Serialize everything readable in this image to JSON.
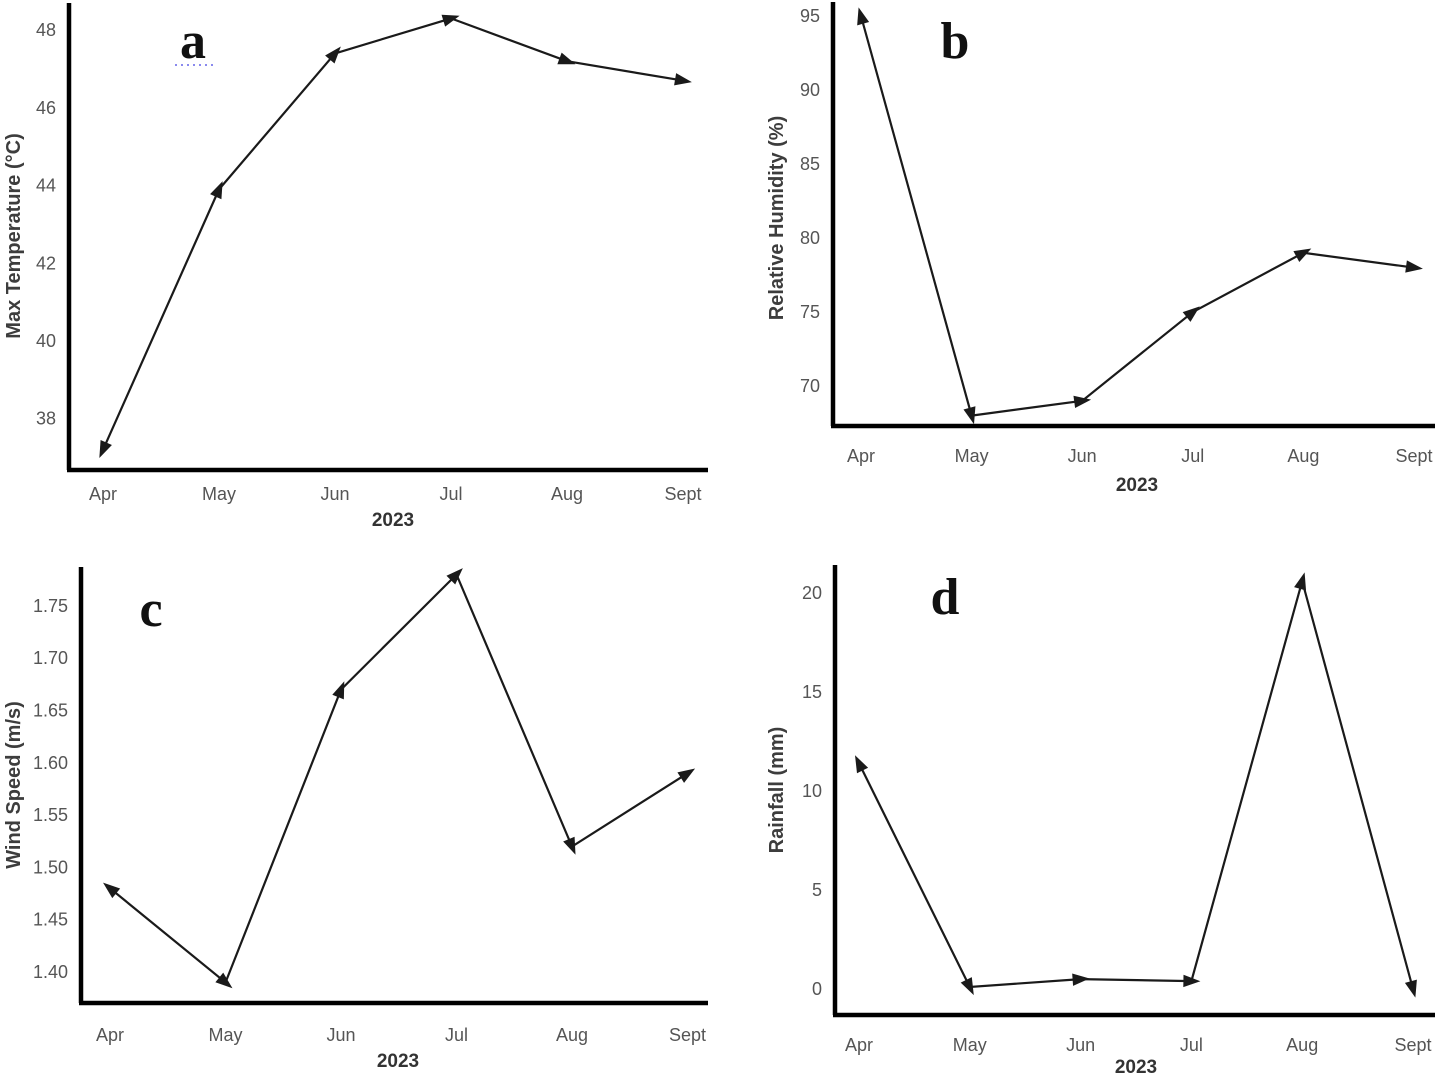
{
  "figure": {
    "description": "Four-panel monthly weather line charts for 2023 (Apr-Sept)",
    "panels": [
      "a",
      "b",
      "c",
      "d"
    ],
    "months": [
      "Apr",
      "May",
      "Jun",
      "Jul",
      "Aug",
      "Sept"
    ],
    "year_label": "2023"
  },
  "colors": {
    "line": "#1a1a1a",
    "spine": "#000000",
    "tick_label": "#555555",
    "axis_title": "#3d3d3d",
    "panel_letter": "#111111",
    "spellcheck_underline": "#8a8aee",
    "background": "#ffffff"
  },
  "chart_data": [
    {
      "panel": "a",
      "type": "line",
      "ylabel": "Max Temperature (°C)",
      "xlabel": "2023",
      "categories": [
        "Apr",
        "May",
        "Jun",
        "Jul",
        "Aug",
        "Sept"
      ],
      "values": [
        37.2,
        43.9,
        47.4,
        48.3,
        47.2,
        46.7
      ],
      "yticks": [
        38,
        40,
        42,
        44,
        46,
        48
      ],
      "ytick_labels": [
        "38",
        "40",
        "42",
        "44",
        "46",
        "48"
      ],
      "ylim": [
        36.7,
        48.7
      ],
      "marker": "arrowhead",
      "legend": "none",
      "grid": false
    },
    {
      "panel": "b",
      "type": "line",
      "ylabel": "Relative Humidity (%)",
      "xlabel": "2023",
      "categories": [
        "Apr",
        "May",
        "Jun",
        "Jul",
        "Aug",
        "Sept"
      ],
      "values": [
        95,
        68,
        69,
        75,
        79,
        78
      ],
      "yticks": [
        70,
        75,
        80,
        85,
        90,
        95
      ],
      "ytick_labels": [
        "70",
        "75",
        "80",
        "85",
        "90",
        "95"
      ],
      "ylim": [
        67.3,
        96.1
      ],
      "marker": "arrowhead",
      "legend": "none",
      "grid": false
    },
    {
      "panel": "c",
      "type": "line",
      "ylabel": "Wind Speed (m/s)",
      "xlabel": "2023",
      "categories": [
        "Apr",
        "May",
        "Jun",
        "Jul",
        "Aug",
        "Sept"
      ],
      "values": [
        1.48,
        1.39,
        1.67,
        1.78,
        1.52,
        1.59
      ],
      "yticks": [
        1.4,
        1.45,
        1.5,
        1.55,
        1.6,
        1.65,
        1.7,
        1.75
      ],
      "ytick_labels": [
        "1.40",
        "1.45",
        "1.50",
        "1.55",
        "1.60",
        "1.65",
        "1.70",
        "1.75"
      ],
      "ylim": [
        1.37,
        1.79
      ],
      "marker": "arrowhead",
      "legend": "none",
      "grid": false
    },
    {
      "panel": "d",
      "type": "line",
      "ylabel": "Rainfall (mm)",
      "xlabel": "2023",
      "categories": [
        "Apr",
        "May",
        "Jun",
        "Jul",
        "Aug",
        "Sept"
      ],
      "values": [
        11.4,
        0.1,
        0.5,
        0.4,
        20.6,
        0
      ],
      "yticks": [
        0,
        5,
        10,
        15,
        20
      ],
      "ytick_labels": [
        "0",
        "5",
        "10",
        "15",
        "20"
      ],
      "ylim": [
        -1.3,
        21.0
      ],
      "marker": "arrowhead",
      "legend": "none",
      "grid": false
    }
  ]
}
